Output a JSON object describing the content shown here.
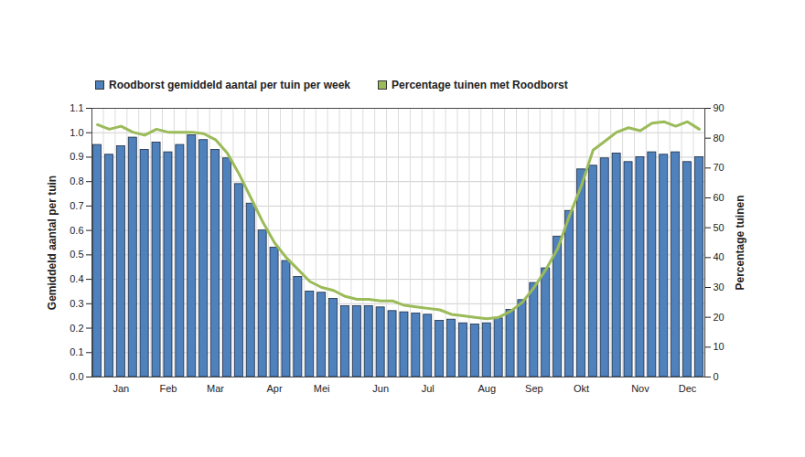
{
  "chart_data": {
    "type": "bar",
    "categories": [
      null,
      null,
      "Jan",
      null,
      null,
      null,
      "Feb",
      null,
      null,
      null,
      "Mar",
      null,
      null,
      null,
      null,
      "Apr",
      null,
      null,
      null,
      "Mei",
      null,
      null,
      null,
      null,
      "Jun",
      null,
      null,
      null,
      "Jul",
      null,
      null,
      null,
      null,
      "Aug",
      null,
      null,
      null,
      "Sep",
      null,
      null,
      null,
      "Okt",
      null,
      null,
      null,
      null,
      "Nov",
      null,
      null,
      null,
      "Dec",
      null
    ],
    "ylabel": "Gemiddeld aantal per tuin",
    "y2label": "Percentage tuinen",
    "ylim": [
      0,
      1.1
    ],
    "yticks": [
      {
        "value": 0,
        "label": "0.0"
      },
      0.1,
      0.2,
      0.3,
      0.4,
      0.5,
      0.6,
      0.7,
      0.8,
      0.9,
      {
        "value": 1,
        "label": "1.0"
      },
      1.1
    ],
    "y2lim": [
      0,
      90
    ],
    "y2ticks": [
      0,
      10,
      20,
      30,
      40,
      50,
      60,
      70,
      80,
      90
    ],
    "grid": true,
    "legend": "top-left",
    "series": [
      {
        "name": "Roodborst gemiddeld aantal per tuin per week",
        "type": "bar",
        "color": "#4f81bd",
        "values": [
          0.95,
          0.91,
          0.945,
          0.98,
          0.93,
          0.96,
          0.92,
          0.95,
          0.99,
          0.97,
          0.93,
          0.895,
          0.79,
          0.71,
          0.6,
          0.53,
          0.475,
          0.41,
          0.35,
          0.345,
          0.32,
          0.29,
          0.29,
          0.29,
          0.285,
          0.27,
          0.265,
          0.26,
          0.255,
          0.23,
          0.235,
          0.22,
          0.215,
          0.22,
          0.24,
          0.275,
          0.315,
          0.385,
          0.445,
          0.575,
          0.68,
          0.85,
          0.865,
          0.895,
          0.915,
          0.88,
          0.9,
          0.92,
          0.91,
          0.92,
          0.88,
          0.9
        ]
      },
      {
        "name": "Percentage tuinen met Roodborst",
        "type": "line",
        "color": "#9bbb59",
        "axis": "y2",
        "values": [
          84.5,
          83,
          84,
          82,
          81,
          83,
          82,
          82,
          82,
          81.5,
          79.5,
          75,
          68,
          60,
          52,
          45,
          40,
          36,
          32,
          30,
          29,
          27,
          26,
          26,
          25.5,
          25.5,
          24,
          23.5,
          23,
          22.5,
          21,
          20.5,
          20,
          19.5,
          20,
          22,
          25,
          30,
          36,
          43,
          54,
          64,
          76,
          79,
          82,
          83.5,
          82.5,
          85,
          85.5,
          84,
          85.5,
          83
        ]
      }
    ]
  }
}
